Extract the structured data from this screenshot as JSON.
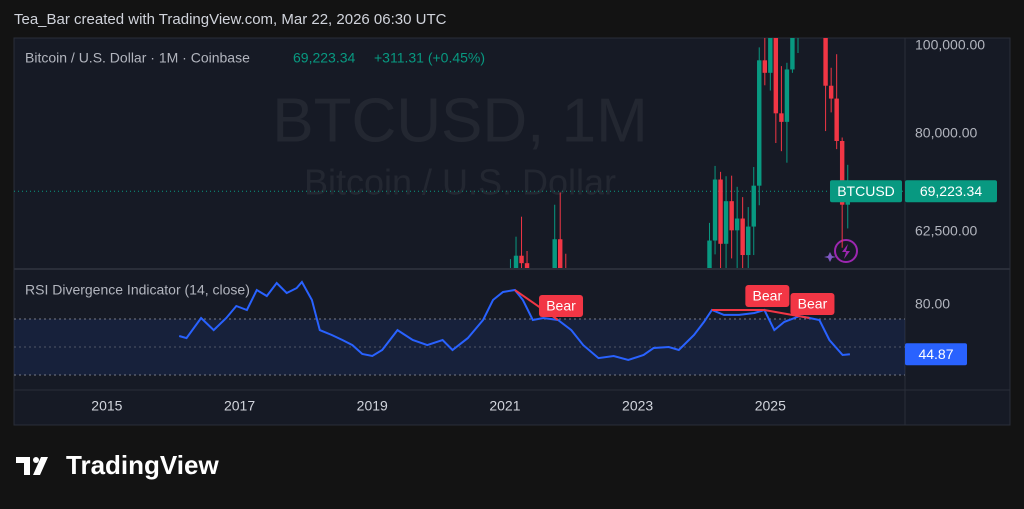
{
  "header": "Tea_Bar created with TradingView.com, Mar 22, 2026 06:30 UTC",
  "brand": "TradingView",
  "chart_data": [
    {
      "type": "candlestick",
      "symbol": "Bitcoin / U.S. Dollar · 1M · Coinbase",
      "change": "+311.31 (+0.45%)",
      "watermark": [
        "BTCUSD, 1M",
        "Bitcoin / U.S. Dollar"
      ],
      "tag": "BTCUSD",
      "last_price": {
        "value": 69223.34,
        "label": "69,223.34"
      },
      "log_scale": true,
      "up_color": "#089981",
      "down_color": "#f23645",
      "xlim": [
        2013.6,
        2027.03
      ],
      "ylim": [
        57000,
        102000
      ],
      "yticks": [
        {
          "value": 100000,
          "label": "100,000.00"
        },
        {
          "value": 80000,
          "label": "80,000.00"
        },
        {
          "value": 62500,
          "label": "62,500.00"
        }
      ],
      "x": [
        2021.083,
        2021.167,
        2021.25,
        2021.333,
        2021.75,
        2021.833,
        2021.917,
        2024.083,
        2024.167,
        2024.25,
        2024.333,
        2024.417,
        2024.5,
        2024.583,
        2024.667,
        2024.75,
        2024.833,
        2024.917,
        2025,
        2025.083,
        2025.167,
        2025.25,
        2025.333,
        2025.417,
        2025.5,
        2025.583,
        2025.667,
        2025.75,
        2025.833,
        2025.917,
        2026,
        2026.083,
        2026.167
      ],
      "open": [
        33100,
        45100,
        58800,
        57700,
        43800,
        61300,
        57000,
        42500,
        61100,
        71300,
        60600,
        67500,
        62700,
        64600,
        58900,
        63300,
        70200,
        96400,
        93400,
        102400,
        84300,
        82500,
        94200,
        104600,
        107100,
        115800,
        108200,
        114000,
        109600,
        90400,
        87500,
        78600,
        66900
      ],
      "high": [
        58300,
        61700,
        64900,
        59500,
        66900,
        69000,
        59100,
        63900,
        73800,
        72700,
        71900,
        72000,
        70000,
        68200,
        66500,
        73600,
        99600,
        108300,
        109600,
        102500,
        95000,
        95800,
        111900,
        110400,
        123200,
        124500,
        117900,
        126200,
        110600,
        94600,
        97900,
        79300,
        74000
      ],
      "low": [
        32300,
        45000,
        47000,
        30000,
        43300,
        53300,
        42000,
        41800,
        59000,
        56500,
        56600,
        58400,
        53500,
        49000,
        52500,
        58900,
        66800,
        90500,
        89300,
        78200,
        76600,
        74400,
        93400,
        98200,
        105300,
        108000,
        107300,
        102000,
        80600,
        84500,
        77000,
        60000,
        63000
      ],
      "close": [
        45100,
        58800,
        57700,
        37300,
        61300,
        57000,
        46300,
        61100,
        71300,
        60600,
        67500,
        62700,
        64600,
        58900,
        63300,
        70200,
        96400,
        93400,
        102400,
        84300,
        82500,
        94200,
        104600,
        107100,
        115800,
        108200,
        114000,
        109600,
        90400,
        87500,
        78600,
        66900,
        69223.34
      ]
    },
    {
      "type": "line",
      "title": "RSI Divergence Indicator (14, close)",
      "color": "#2962ff",
      "band_color": "#2962ff",
      "bands": [
        30,
        70
      ],
      "midline": 50,
      "xlim": [
        2013.6,
        2027.03
      ],
      "ylim": [
        19.3,
        105
      ],
      "xticks": [
        2015,
        2017,
        2019,
        2021,
        2023,
        2025
      ],
      "yticks": [
        {
          "value": 80,
          "label": "80.00"
        }
      ],
      "x": [
        2016.09,
        2016.2,
        2016.42,
        2016.61,
        2016.8,
        2016.95,
        2017.11,
        2017.26,
        2017.41,
        2017.56,
        2017.71,
        2017.86,
        2017.94,
        2018.09,
        2018.21,
        2018.39,
        2018.55,
        2018.7,
        2018.85,
        2019.0,
        2019.15,
        2019.38,
        2019.61,
        2019.83,
        2020.06,
        2020.21,
        2020.44,
        2020.67,
        2020.82,
        2020.97,
        2021.15,
        2021.27,
        2021.42,
        2021.58,
        2021.8,
        2022.0,
        2022.18,
        2022.41,
        2022.64,
        2022.86,
        2023.09,
        2023.24,
        2023.47,
        2023.62,
        2023.85,
        2024.0,
        2024.12,
        2024.3,
        2024.53,
        2024.76,
        2024.91,
        2025.06,
        2025.21,
        2025.44,
        2025.59,
        2025.74,
        2025.89,
        2026.09,
        2026.2
      ],
      "values": [
        57.9,
        56.4,
        70.7,
        62.1,
        70.7,
        79.3,
        76.4,
        90.7,
        86.4,
        95.7,
        88.6,
        92.1,
        96.4,
        83.6,
        62.1,
        58.6,
        55.0,
        51.4,
        45.0,
        43.6,
        47.9,
        62.1,
        55.0,
        51.4,
        55.0,
        47.9,
        56.4,
        69.3,
        83.6,
        89.3,
        90.7,
        83.6,
        69.3,
        70.7,
        69.3,
        62.1,
        51.4,
        42.1,
        43.6,
        40.7,
        44.3,
        49.3,
        50.0,
        47.9,
        58.6,
        67.9,
        76.4,
        72.9,
        72.9,
        74.3,
        76.4,
        62.1,
        67.9,
        72.1,
        70.7,
        69.3,
        55.0,
        44.3,
        44.87
      ],
      "divergences": [
        {
          "label": "Bear",
          "color": "#f23645",
          "x": [
            2021.15,
            2021.8
          ],
          "values": [
            90.7,
            69.3
          ]
        },
        {
          "label": "Bear",
          "color": "#f23645",
          "x": [
            2024.12,
            2024.91
          ],
          "values": [
            76.4,
            76.4
          ]
        },
        {
          "label": "Bear",
          "color": "#f23645",
          "x": [
            2024.91,
            2025.59
          ],
          "values": [
            76.4,
            70.7
          ]
        }
      ]
    }
  ]
}
